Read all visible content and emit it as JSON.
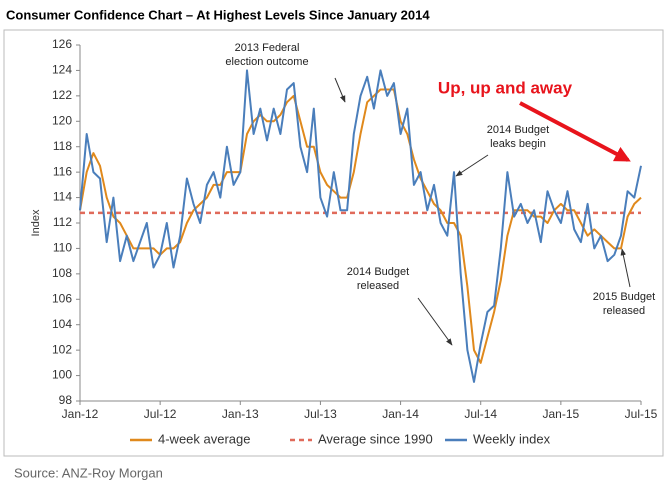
{
  "chart_data": {
    "type": "line",
    "title": "Consumer Confidence Chart – At Highest Levels Since January 2014",
    "y_label": "Index",
    "source": "Source: ANZ-Roy Morgan",
    "categories": [
      "Jan-12",
      null,
      null,
      null,
      null,
      null,
      null,
      null,
      null,
      null,
      null,
      null,
      "Jul-12",
      null,
      null,
      null,
      null,
      null,
      null,
      null,
      null,
      null,
      null,
      null,
      "Jan-13",
      null,
      null,
      null,
      null,
      null,
      null,
      null,
      null,
      null,
      null,
      null,
      "Jul-13",
      null,
      null,
      null,
      null,
      null,
      null,
      null,
      null,
      null,
      null,
      null,
      "Jan-14",
      null,
      null,
      null,
      null,
      null,
      null,
      null,
      null,
      null,
      null,
      null,
      "Jul-14",
      null,
      null,
      null,
      null,
      null,
      null,
      null,
      null,
      null,
      null,
      null,
      "Jan-15",
      null,
      null,
      null,
      null,
      null,
      null,
      null,
      null,
      null,
      null,
      null,
      "Jul-15"
    ],
    "series": [
      {
        "name": "4-week average",
        "color": "#e0891c",
        "values": [
          113,
          116,
          117.5,
          116.5,
          114,
          112.5,
          112,
          111,
          110,
          110,
          110,
          110,
          109.5,
          110,
          110,
          110.5,
          112,
          113,
          113.5,
          114,
          115,
          115,
          116,
          116,
          116,
          119,
          120,
          120.5,
          120,
          120,
          120.5,
          121.5,
          122,
          120,
          118,
          118,
          116,
          115,
          114.5,
          114,
          114,
          116,
          119,
          121.5,
          122,
          122.5,
          122.5,
          122.5,
          120,
          119,
          117,
          115.5,
          114.5,
          113.5,
          113,
          112,
          112,
          111,
          107,
          102,
          101,
          103,
          105,
          107.5,
          111,
          113,
          113,
          113,
          112.5,
          112.5,
          112,
          113,
          113.5,
          113,
          113,
          112,
          111,
          111.5,
          111,
          110.5,
          110,
          110,
          112.5,
          113.5,
          114
        ]
      },
      {
        "name": "Weekly index",
        "color": "#4a7ebb",
        "values": [
          113,
          119,
          116,
          115.5,
          110.5,
          114,
          109,
          111,
          109,
          110.5,
          112,
          108.5,
          109.5,
          112,
          108.5,
          111,
          115.5,
          113.5,
          112,
          115,
          116,
          114,
          118,
          115,
          116,
          124,
          119,
          121,
          118.5,
          121,
          119,
          122.5,
          123,
          118,
          116,
          121,
          114,
          112.5,
          116,
          113,
          113,
          119,
          122,
          123.5,
          121,
          124,
          122,
          123,
          119,
          121,
          115,
          116,
          113,
          115,
          112,
          111,
          116,
          108,
          102,
          99.5,
          102.5,
          105,
          105.5,
          110,
          116,
          112.5,
          113.5,
          112,
          113,
          110.5,
          114.5,
          113,
          112,
          114.5,
          111.5,
          110.5,
          113.5,
          110,
          111,
          109,
          109.5,
          111,
          114.5,
          114,
          116.5
        ]
      }
    ],
    "reference_line": {
      "name": "Average since 1990",
      "value": 112.8,
      "color": "#e06a5a"
    },
    "ylim": [
      98,
      126
    ],
    "yticks": [
      98,
      100,
      102,
      104,
      106,
      108,
      110,
      112,
      114,
      116,
      118,
      120,
      122,
      124,
      126
    ],
    "annotations": [
      {
        "text": [
          "2013 Federal",
          "election outcome"
        ]
      },
      {
        "text": [
          "2014 Budget",
          "leaks begin"
        ]
      },
      {
        "text": [
          "2014 Budget",
          "released"
        ]
      },
      {
        "text": [
          "2015 Budget",
          "released"
        ]
      },
      {
        "text": [
          "Up, up and away"
        ],
        "color": "#e8141c"
      }
    ]
  }
}
